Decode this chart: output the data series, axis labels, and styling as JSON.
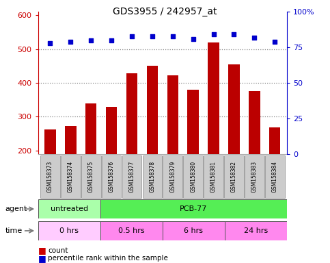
{
  "title": "GDS3955 / 242957_at",
  "samples": [
    "GSM158373",
    "GSM158374",
    "GSM158375",
    "GSM158376",
    "GSM158377",
    "GSM158378",
    "GSM158379",
    "GSM158380",
    "GSM158381",
    "GSM158382",
    "GSM158383",
    "GSM158384"
  ],
  "counts": [
    262,
    272,
    340,
    330,
    428,
    450,
    422,
    380,
    520,
    455,
    375,
    268
  ],
  "percentiles": [
    78,
    79,
    80,
    80,
    83,
    83,
    83,
    81,
    84,
    84,
    82,
    79
  ],
  "ylim_left": [
    190,
    610
  ],
  "ylim_right": [
    0,
    100
  ],
  "yticks_left": [
    200,
    300,
    400,
    500,
    600
  ],
  "yticks_right": [
    0,
    25,
    50,
    75,
    100
  ],
  "bar_color": "#bb0000",
  "dot_color": "#0000cc",
  "agent_groups": [
    {
      "label": "untreated",
      "start": 0,
      "end": 3,
      "color": "#aaffaa"
    },
    {
      "label": "PCB-77",
      "start": 3,
      "end": 12,
      "color": "#55ee55"
    }
  ],
  "time_groups": [
    {
      "label": "0 hrs",
      "start": 0,
      "end": 3,
      "color": "#ffccff"
    },
    {
      "label": "0.5 hrs",
      "start": 3,
      "end": 6,
      "color": "#ff88ee"
    },
    {
      "label": "6 hrs",
      "start": 6,
      "end": 9,
      "color": "#ff88ee"
    },
    {
      "label": "24 hrs",
      "start": 9,
      "end": 12,
      "color": "#ff88ee"
    }
  ],
  "legend_count_color": "#cc0000",
  "legend_dot_color": "#0000cc",
  "grid_dotted_at": [
    300,
    400,
    500
  ],
  "bg_color": "#ffffff",
  "label_area_color": "#cccccc",
  "left_axis_color": "#cc0000",
  "right_axis_color": "#0000cc",
  "spine_color": "#000000"
}
